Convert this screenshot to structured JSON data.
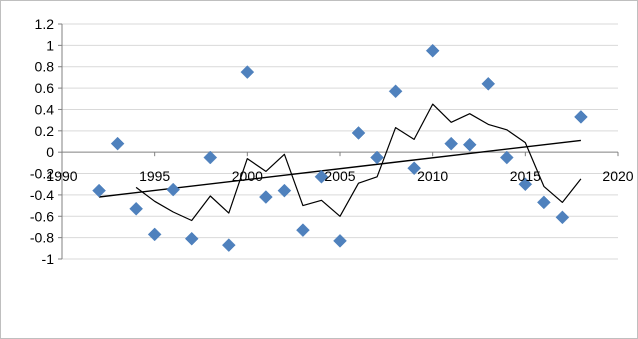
{
  "chart_data": {
    "type": "scatter",
    "title": "",
    "xlabel": "",
    "ylabel": "",
    "xlim": [
      1990,
      2020
    ],
    "ylim": [
      -1,
      1.2
    ],
    "grid": "horizontal",
    "legend": "none",
    "x_ticks": [
      {
        "value": 1990,
        "label": "1990"
      },
      {
        "value": 1995,
        "label": "1995"
      },
      {
        "value": 2000,
        "label": "2000"
      },
      {
        "value": 2005,
        "label": "2005"
      },
      {
        "value": 2010,
        "label": "2010"
      },
      {
        "value": 2015,
        "label": "2015"
      },
      {
        "value": 2020,
        "label": "2020"
      }
    ],
    "y_ticks": [
      {
        "value": 1.2,
        "label": "1.2"
      },
      {
        "value": 1.0,
        "label": "1"
      },
      {
        "value": 0.8,
        "label": "0.8"
      },
      {
        "value": 0.6,
        "label": "0.6"
      },
      {
        "value": 0.4,
        "label": "0.4"
      },
      {
        "value": 0.2,
        "label": "0.2"
      },
      {
        "value": 0.0,
        "label": "0"
      },
      {
        "value": -0.2,
        "label": "-0.2"
      },
      {
        "value": -0.4,
        "label": "-0.4"
      },
      {
        "value": -0.6,
        "label": "-0.6"
      },
      {
        "value": -0.8,
        "label": "-0.8"
      },
      {
        "value": -1.0,
        "label": "-1"
      }
    ],
    "colors": {
      "points": "#4f81bd",
      "lines": "#000000",
      "grid": "#d9d9d9",
      "axis": "#808080"
    },
    "series": [
      {
        "kind": "points",
        "marker": "diamond",
        "x": [
          1992,
          1993,
          1994,
          1995,
          1996,
          1997,
          1998,
          1999,
          2000,
          2001,
          2002,
          2003,
          2004,
          2005,
          2006,
          2007,
          2008,
          2009,
          2010,
          2011,
          2012,
          2013,
          2014,
          2015,
          2016,
          2017,
          2018
        ],
        "y": [
          -0.36,
          0.08,
          -0.53,
          -0.77,
          -0.35,
          -0.81,
          -0.05,
          -0.87,
          0.75,
          -0.42,
          -0.36,
          -0.73,
          -0.23,
          -0.83,
          0.18,
          -0.05,
          0.57,
          -0.15,
          0.95,
          0.08,
          0.07,
          0.64,
          -0.05,
          -0.3,
          -0.47,
          -0.61,
          0.33
        ]
      },
      {
        "kind": "moving-average-line",
        "x": [
          1994,
          1995,
          1996,
          1997,
          1998,
          1999,
          2000,
          2001,
          2002,
          2003,
          2004,
          2005,
          2006,
          2007,
          2008,
          2009,
          2010,
          2011,
          2012,
          2013,
          2014,
          2015,
          2016,
          2017,
          2018
        ],
        "y": [
          -0.33,
          -0.46,
          -0.56,
          -0.64,
          -0.41,
          -0.57,
          -0.06,
          -0.18,
          -0.02,
          -0.5,
          -0.45,
          -0.6,
          -0.29,
          -0.23,
          0.23,
          0.12,
          0.45,
          0.28,
          0.36,
          0.26,
          0.21,
          0.09,
          -0.32,
          -0.47,
          -0.25
        ]
      },
      {
        "kind": "trend-line",
        "x": [
          1992,
          2018
        ],
        "y": [
          -0.42,
          0.11
        ]
      }
    ]
  }
}
